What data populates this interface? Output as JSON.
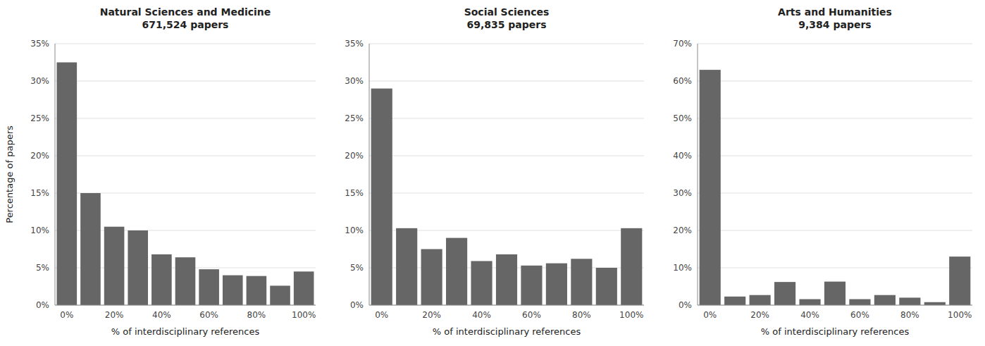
{
  "chart_data": [
    {
      "type": "bar",
      "title": "Natural Sciences and Medicine\n671,524 papers",
      "categories": [
        "0%",
        null,
        "20%",
        null,
        "40%",
        null,
        "60%",
        null,
        "80%",
        null,
        "100%"
      ],
      "values": [
        32.5,
        15.0,
        10.5,
        10.0,
        6.8,
        6.4,
        4.8,
        4.0,
        3.9,
        2.6,
        4.5
      ],
      "color": "#666666",
      "xlabel": "% of interdisciplinary references",
      "ylabel": "Percentage of papers",
      "ylim": [
        0,
        35
      ],
      "yticks": [
        {
          "value": 0,
          "label": "0%"
        },
        {
          "value": 5,
          "label": "5%"
        },
        {
          "value": 10,
          "label": "10%"
        },
        {
          "value": 15,
          "label": "15%"
        },
        {
          "value": 20,
          "label": "20%"
        },
        {
          "value": 25,
          "label": "25%"
        },
        {
          "value": 30,
          "label": "30%"
        },
        {
          "value": 35,
          "label": "35%"
        }
      ],
      "grid": true
    },
    {
      "type": "bar",
      "title": "Social Sciences\n69,835 papers",
      "categories": [
        "0%",
        null,
        "20%",
        null,
        "40%",
        null,
        "60%",
        null,
        "80%",
        null,
        "100%"
      ],
      "values": [
        29.0,
        10.3,
        7.5,
        9.0,
        5.9,
        6.8,
        5.3,
        5.6,
        6.2,
        5.0,
        10.3
      ],
      "color": "#666666",
      "xlabel": "% of interdisciplinary references",
      "ylim": [
        0,
        35
      ],
      "yticks": [
        {
          "value": 0,
          "label": "0%"
        },
        {
          "value": 5,
          "label": "5%"
        },
        {
          "value": 10,
          "label": "10%"
        },
        {
          "value": 15,
          "label": "15%"
        },
        {
          "value": 20,
          "label": "20%"
        },
        {
          "value": 25,
          "label": "25%"
        },
        {
          "value": 30,
          "label": "30%"
        },
        {
          "value": 35,
          "label": "35%"
        }
      ],
      "grid": true
    },
    {
      "type": "bar",
      "title": "Arts and Humanities\n9,384 papers",
      "categories": [
        "0%",
        null,
        "20%",
        null,
        "40%",
        null,
        "60%",
        null,
        "80%",
        null,
        "100%"
      ],
      "values": [
        63.0,
        2.3,
        2.7,
        6.2,
        1.6,
        6.3,
        1.6,
        2.7,
        2.0,
        0.8,
        13.0
      ],
      "color": "#666666",
      "xlabel": "% of interdisciplinary references",
      "ylim": [
        0,
        70
      ],
      "yticks": [
        {
          "value": 0,
          "label": "0%"
        },
        {
          "value": 10,
          "label": "10%"
        },
        {
          "value": 20,
          "label": "20%"
        },
        {
          "value": 30,
          "label": "30%"
        },
        {
          "value": 40,
          "label": "40%"
        },
        {
          "value": 50,
          "label": "50%"
        },
        {
          "value": 60,
          "label": "60%"
        },
        {
          "value": 70,
          "label": "70%"
        }
      ],
      "grid": true
    }
  ]
}
